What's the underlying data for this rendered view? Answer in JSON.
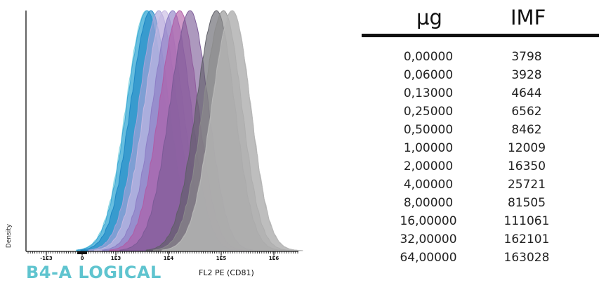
{
  "chart_data": {
    "type": "area",
    "title": "",
    "xlabel": "FL2 PE (CD81)",
    "ylabel": "Density",
    "watermark": "B4-A LOGICAL",
    "x_scale": "biexponential",
    "x_ticks": [
      "-1E3",
      "0",
      "1E3",
      "1E4",
      "1E5",
      "1E6"
    ],
    "series": [
      {
        "peak": 3798,
        "color": "#7fd3e0"
      },
      {
        "peak": 3928,
        "color": "#3aa7d6"
      },
      {
        "peak": 4644,
        "color": "#1b86c4"
      },
      {
        "peak": 6562,
        "color": "#a9a2d8"
      },
      {
        "peak": 8462,
        "color": "#c6b8e2"
      },
      {
        "peak": 12009,
        "color": "#8b7bc4"
      },
      {
        "peak": 16350,
        "color": "#b05ba4"
      },
      {
        "peak": 25721,
        "color": "#7a5a96"
      },
      {
        "peak": 81505,
        "color": "#5e5e66"
      },
      {
        "peak": 111061,
        "color": "#8c8c8c"
      },
      {
        "peak": 162101,
        "color": "#a4a4a4"
      },
      {
        "peak": 163028,
        "color": "#b8b8b8"
      }
    ],
    "grid": false
  },
  "table": {
    "headers": [
      "µg",
      "IMF"
    ],
    "rows": [
      [
        "0,00000",
        "3798"
      ],
      [
        "0,06000",
        "3928"
      ],
      [
        "0,13000",
        "4644"
      ],
      [
        "0,25000",
        "6562"
      ],
      [
        "0,50000",
        "8462"
      ],
      [
        "1,00000",
        "12009"
      ],
      [
        "2,00000",
        "16350"
      ],
      [
        "4,00000",
        "25721"
      ],
      [
        "8,00000",
        "81505"
      ],
      [
        "16,00000",
        "111061"
      ],
      [
        "32,00000",
        "162101"
      ],
      [
        "64,00000",
        "163028"
      ]
    ]
  }
}
